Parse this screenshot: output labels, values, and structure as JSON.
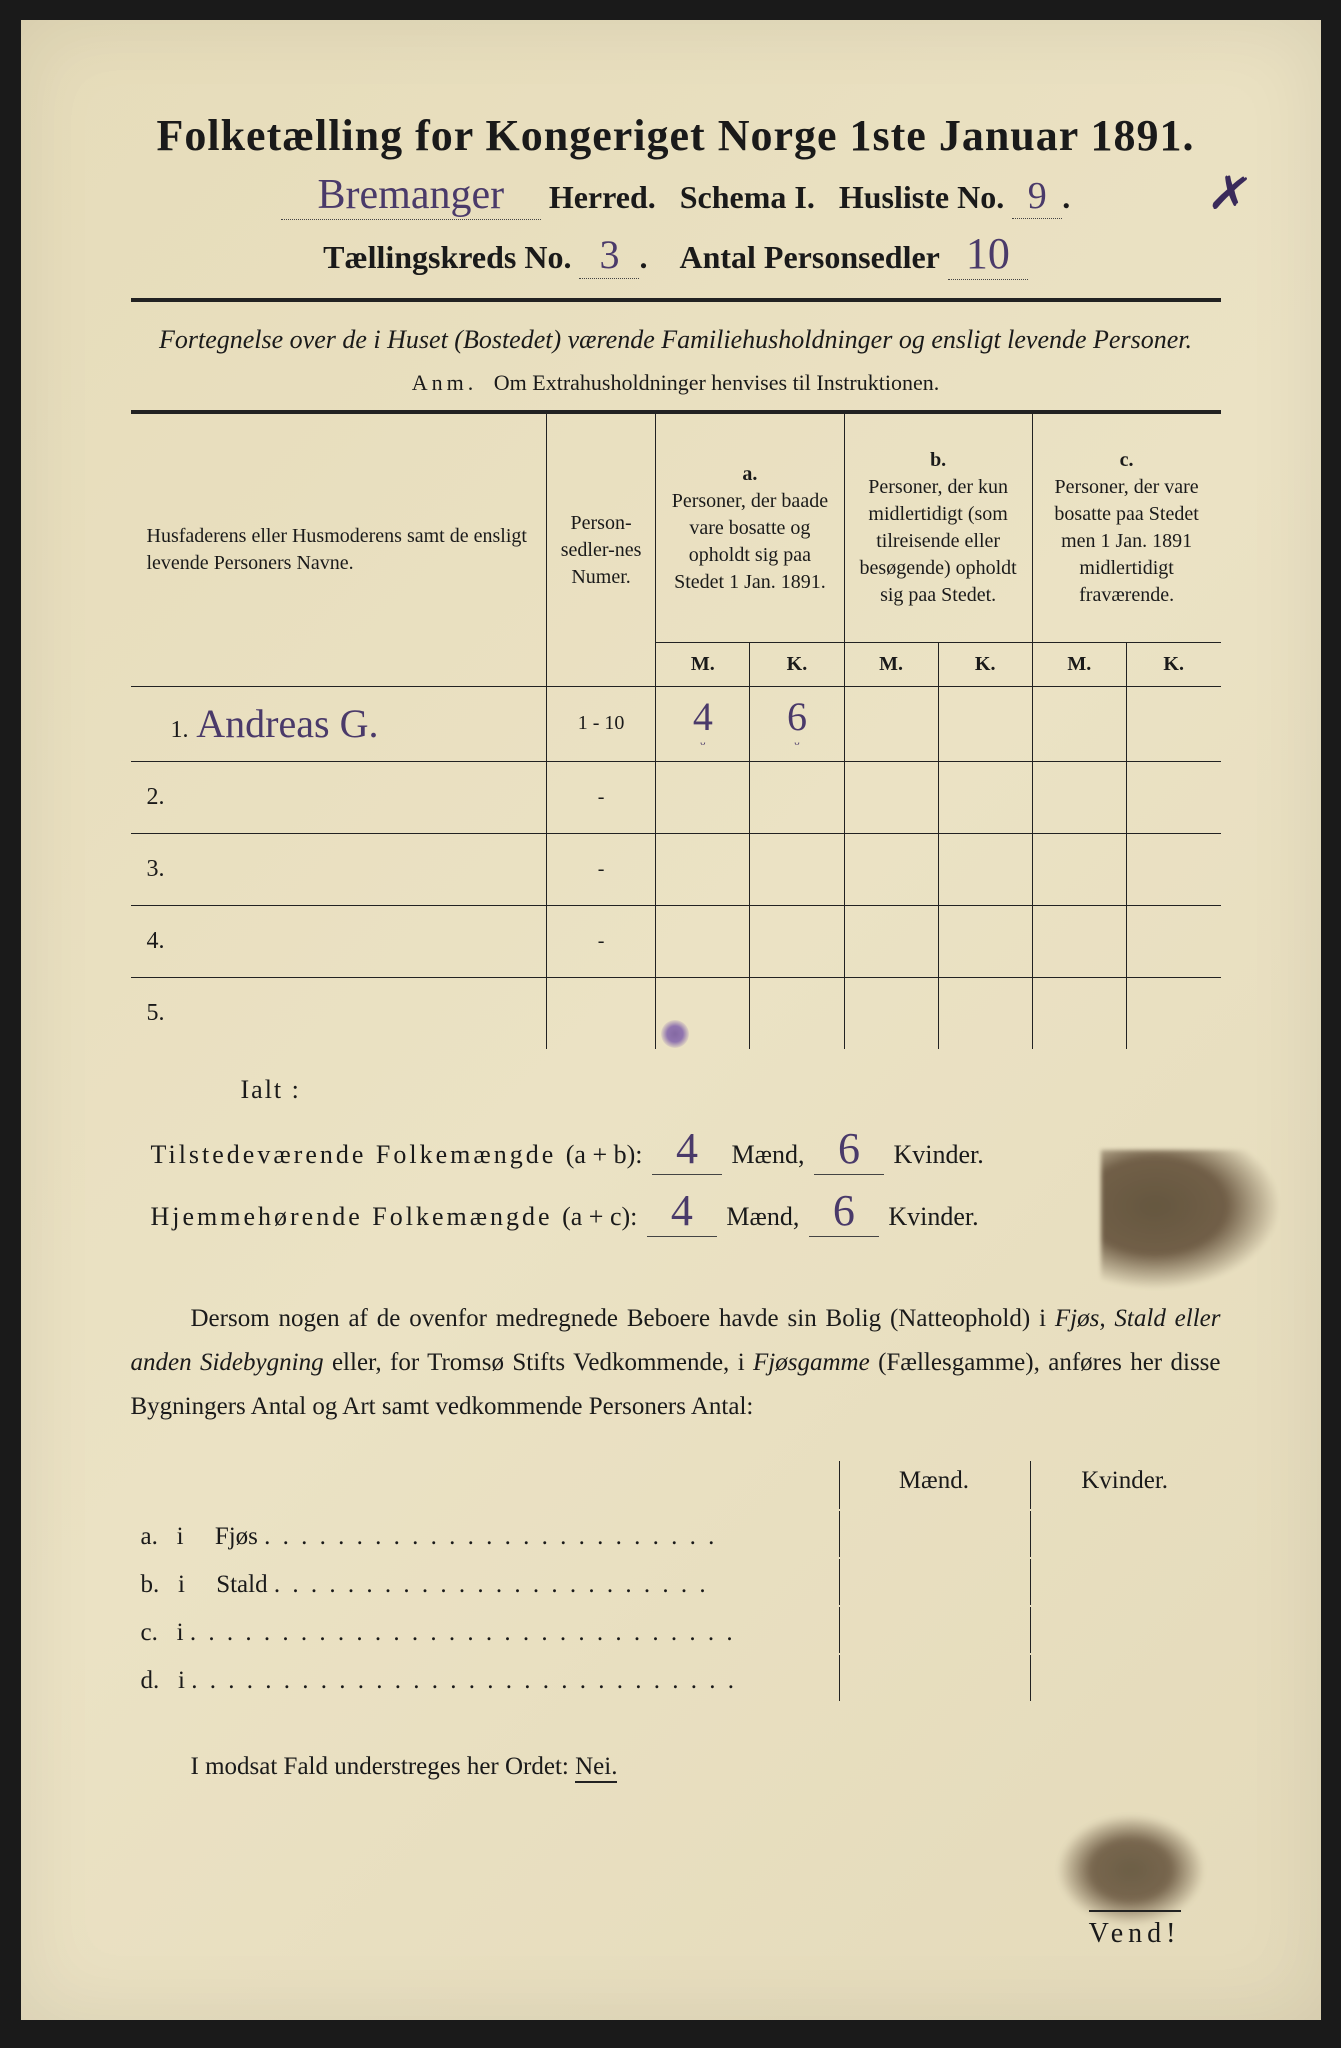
{
  "title": "Folketælling for Kongeriget Norge 1ste Januar 1891.",
  "header": {
    "herred_hw": "Bremanger",
    "herred_label": "Herred.",
    "schema_label": "Schema I.",
    "husliste_label": "Husliste No.",
    "husliste_hw": "9",
    "kreds_label": "Tællingskreds No.",
    "kreds_hw": "3",
    "antal_label": "Antal Personsedler",
    "antal_hw": "10"
  },
  "subtitle": "Fortegnelse over de i Huset (Bostedet) værende Familiehusholdninger og ensligt levende Personer.",
  "anm": {
    "prefix": "Anm.",
    "text": "Om Extrahusholdninger henvises til Instruktionen."
  },
  "table": {
    "col_name": "Husfaderens eller Husmoderens samt de ensligt levende Personers Navne.",
    "col_num": "Person-sedler-nes Numer.",
    "col_a_label": "a.",
    "col_a_text": "Personer, der baade vare bosatte og opholdt sig paa Stedet 1 Jan. 1891.",
    "col_b_label": "b.",
    "col_b_text": "Personer, der kun midlertidigt (som tilreisende eller besøgende) opholdt sig paa Stedet.",
    "col_c_label": "c.",
    "col_c_text": "Personer, der vare bosatte paa Stedet men 1 Jan. 1891 midlertidigt fraværende.",
    "m": "M.",
    "k": "K.",
    "rows": [
      {
        "n": "1.",
        "name": "Andreas G.",
        "num": "1 - 10",
        "am": "4",
        "ak": "6",
        "bm": "",
        "bk": "",
        "cm": "",
        "ck": ""
      },
      {
        "n": "2.",
        "name": "",
        "num": "-",
        "am": "",
        "ak": "",
        "bm": "",
        "bk": "",
        "cm": "",
        "ck": ""
      },
      {
        "n": "3.",
        "name": "",
        "num": "-",
        "am": "",
        "ak": "",
        "bm": "",
        "bk": "",
        "cm": "",
        "ck": ""
      },
      {
        "n": "4.",
        "name": "",
        "num": "-",
        "am": "",
        "ak": "",
        "bm": "",
        "bk": "",
        "cm": "",
        "ck": ""
      },
      {
        "n": "5.",
        "name": "",
        "num": "",
        "am": "",
        "ak": "",
        "bm": "",
        "bk": "",
        "cm": "",
        "ck": ""
      }
    ]
  },
  "ialt": "Ialt :",
  "summary": {
    "line1_label": "Tilstedeværende Folkemængde",
    "line1_formula": "(a + b):",
    "line1_m": "4",
    "line1_k": "6",
    "line2_label": "Hjemmehørende Folkemængde",
    "line2_formula": "(a + c):",
    "line2_m": "4",
    "line2_k": "6",
    "maend": "Mænd,",
    "kvinder": "Kvinder."
  },
  "paragraph": {
    "p1": "Dersom nogen af de ovenfor medregnede Beboere havde sin Bolig (Natteophold) i ",
    "i1": "Fjøs, Stald eller anden Sidebygning",
    "p2": " eller, for Tromsø Stifts Vedkommende, i ",
    "i2": "Fjøsgamme",
    "p3": " (Fællesgamme), anføres her disse Bygningers Antal og Art samt vedkommende Personers Antal:"
  },
  "subtable": {
    "maend": "Mænd.",
    "kvinder": "Kvinder.",
    "rows": [
      {
        "n": "a.",
        "i": "i",
        "label": "Fjøs"
      },
      {
        "n": "b.",
        "i": "i",
        "label": "Stald"
      },
      {
        "n": "c.",
        "i": "i",
        "label": ""
      },
      {
        "n": "d.",
        "i": "i",
        "label": ""
      }
    ]
  },
  "footer": {
    "text": "I modsat Fald understreges her Ordet: ",
    "nei": "Nei."
  },
  "vend": "Vend!",
  "colors": {
    "paper": "#e8dfc0",
    "ink": "#1a1a1a",
    "handwriting": "#4a3a6a",
    "stain": "#3a2a15"
  }
}
